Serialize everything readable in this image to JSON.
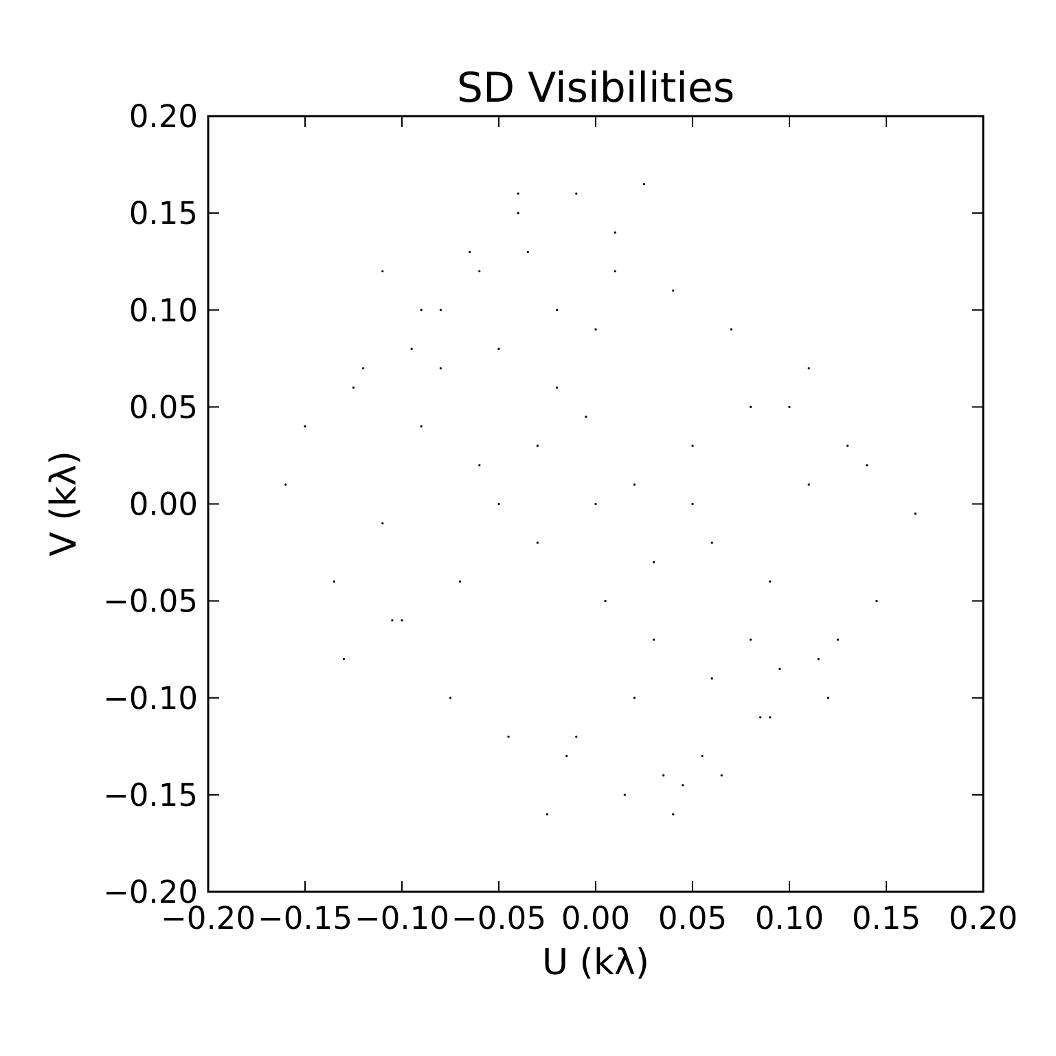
{
  "chart_data": {
    "type": "scatter",
    "title": "SD Visibilities",
    "xlabel": "U (kλ)",
    "ylabel": "V (kλ)",
    "xlim": [
      -0.2,
      0.2
    ],
    "ylim": [
      -0.2,
      0.2
    ],
    "x_ticks": [
      -0.2,
      -0.15,
      -0.1,
      -0.05,
      0.0,
      0.05,
      0.1,
      0.15,
      0.2
    ],
    "y_ticks": [
      -0.2,
      -0.15,
      -0.1,
      -0.05,
      0.0,
      0.05,
      0.1,
      0.15,
      0.2
    ],
    "x_tick_labels": [
      "−0.20",
      "−0.15",
      "−0.10",
      "−0.05",
      "0.00",
      "0.05",
      "0.10",
      "0.15",
      "0.20"
    ],
    "y_tick_labels": [
      "−0.20",
      "−0.15",
      "−0.10",
      "−0.05",
      "0.00",
      "0.05",
      "0.10",
      "0.15",
      "0.20"
    ],
    "grid": false,
    "marker_color": "#000000",
    "series": [
      {
        "x": [
          0.0,
          0.02,
          -0.03,
          0.05,
          -0.07,
          0.08,
          -0.1,
          0.11,
          -0.13,
          0.14,
          -0.16,
          0.165,
          -0.02,
          0.03,
          -0.05,
          0.06,
          -0.08,
          0.09,
          -0.11,
          0.12,
          0.01,
          -0.015,
          0.04,
          -0.045,
          0.07,
          -0.075,
          0.1,
          -0.105,
          0.13,
          -0.135,
          0.015,
          -0.01,
          0.035,
          -0.035,
          0.055,
          -0.06,
          0.085,
          -0.09,
          0.115,
          -0.12,
          0.145,
          -0.15,
          -0.025,
          0.025,
          -0.04,
          0.045,
          -0.065,
          0.065,
          -0.095,
          0.095,
          -0.125,
          0.125,
          0.005,
          -0.005,
          0.0,
          0.03,
          -0.03,
          0.06,
          -0.06,
          0.09,
          -0.09,
          0.02,
          -0.02,
          0.05,
          -0.05,
          0.08,
          -0.08,
          0.11,
          -0.11,
          0.01,
          -0.01,
          0.04,
          -0.04
        ],
        "y": [
          0.0,
          0.01,
          -0.02,
          0.03,
          -0.04,
          0.05,
          -0.06,
          0.07,
          -0.08,
          0.02,
          0.01,
          -0.005,
          0.06,
          -0.07,
          0.08,
          -0.09,
          0.1,
          -0.11,
          0.12,
          -0.1,
          0.14,
          -0.13,
          0.11,
          -0.12,
          0.09,
          -0.1,
          0.05,
          -0.06,
          0.03,
          -0.04,
          -0.15,
          0.16,
          -0.14,
          0.13,
          -0.13,
          0.12,
          -0.11,
          0.1,
          -0.08,
          0.07,
          -0.05,
          0.04,
          -0.16,
          0.165,
          0.15,
          -0.145,
          0.13,
          -0.14,
          0.08,
          -0.085,
          0.06,
          -0.07,
          -0.05,
          0.045,
          0.09,
          -0.03,
          0.03,
          -0.02,
          0.02,
          -0.04,
          0.04,
          -0.1,
          0.1,
          0.0,
          0.0,
          -0.07,
          0.07,
          0.01,
          -0.01,
          0.12,
          -0.12,
          -0.16,
          0.16
        ]
      }
    ]
  }
}
